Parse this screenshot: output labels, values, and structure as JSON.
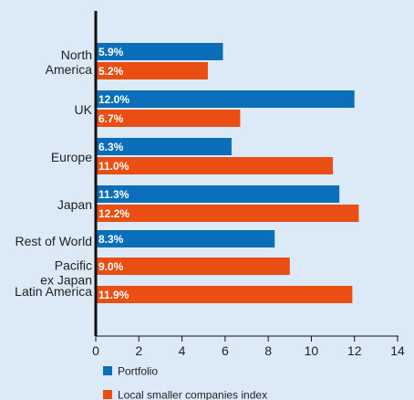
{
  "colors": {
    "background": "#dbeaf6",
    "portfolio": "#0a6fb8",
    "index": "#ea4e12",
    "axis": "#111111"
  },
  "chart_data": {
    "type": "bar",
    "orientation": "horizontal",
    "categories": [
      [
        "North",
        "America"
      ],
      [
        "UK"
      ],
      [
        "Europe"
      ],
      [
        "Japan"
      ],
      [
        "Rest of World"
      ],
      [
        "Pacific",
        "ex Japan"
      ],
      [
        "Latin America"
      ]
    ],
    "series": [
      {
        "name": "Portfolio",
        "values": [
          5.9,
          12.0,
          6.3,
          11.3,
          8.3,
          null,
          null
        ],
        "labels": [
          "5.9%",
          "12.0%",
          "6.3%",
          "11.3%",
          "8.3%",
          "",
          ""
        ]
      },
      {
        "name": "Local smaller companies index",
        "values": [
          5.2,
          6.7,
          11.0,
          12.2,
          null,
          9.0,
          11.9
        ],
        "labels": [
          "5.2%",
          "6.7%",
          "11.0%",
          "12.2%",
          "",
          "9.0%",
          "11.9%"
        ]
      }
    ],
    "xlim": [
      0,
      14
    ],
    "xticks": [
      0,
      2,
      4,
      6,
      8,
      10,
      12,
      14
    ],
    "xtick_labels": [
      "0",
      "2",
      "4",
      "6",
      "8",
      "10",
      "12",
      "14"
    ],
    "grid": false,
    "legend_position": "bottom-left"
  }
}
